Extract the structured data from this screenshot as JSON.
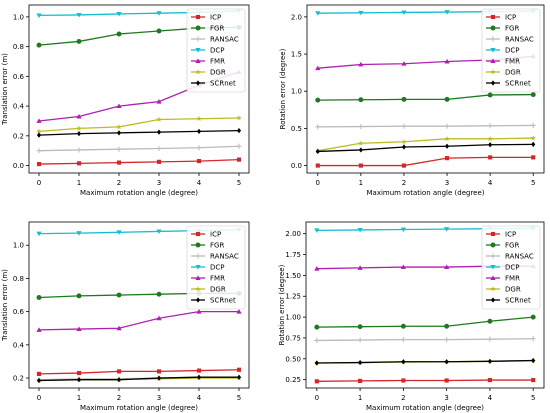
{
  "chart_data": [
    {
      "type": "line",
      "xlabel": "Maximum rotation angle (degree)",
      "ylabel": "Translation error (m)",
      "x": [
        0,
        1,
        2,
        3,
        4,
        5
      ],
      "xlim": [
        -0.25,
        5.25
      ],
      "ylim": [
        -0.05,
        1.08
      ],
      "yticks": [
        0.0,
        0.2,
        0.4,
        0.6,
        0.8,
        1.0
      ],
      "tick_format": 1,
      "legend": "top-right",
      "series": [
        {
          "name": "ICP",
          "color": "#d62728",
          "marker": "square",
          "values": [
            0.01,
            0.015,
            0.02,
            0.025,
            0.03,
            0.04
          ]
        },
        {
          "name": "FGR",
          "color": "#1f7a1f",
          "marker": "circle",
          "values": [
            0.81,
            0.835,
            0.885,
            0.905,
            0.925,
            0.93
          ]
        },
        {
          "name": "RANSAC",
          "color": "#bbbbbb",
          "marker": "plus",
          "values": [
            0.1,
            0.105,
            0.11,
            0.115,
            0.12,
            0.13
          ]
        },
        {
          "name": "DCP",
          "color": "#17becf",
          "marker": "triangle-down",
          "values": [
            1.01,
            1.013,
            1.02,
            1.025,
            1.03,
            1.04
          ]
        },
        {
          "name": "FMR",
          "color": "#b01fb0",
          "marker": "triangle-up",
          "values": [
            0.3,
            0.33,
            0.4,
            0.43,
            0.54,
            0.63
          ]
        },
        {
          "name": "DGR",
          "color": "#bcbd22",
          "marker": "star",
          "values": [
            0.23,
            0.25,
            0.26,
            0.31,
            0.315,
            0.32
          ]
        },
        {
          "name": "SCRnet",
          "color": "#000000",
          "marker": "diamond",
          "values": [
            0.205,
            0.215,
            0.22,
            0.225,
            0.23,
            0.235
          ]
        }
      ]
    },
    {
      "type": "line",
      "xlabel": "Maximum rotation angle (degree)",
      "ylabel": "Rotation error (degree)",
      "x": [
        0,
        1,
        2,
        3,
        4,
        5
      ],
      "xlim": [
        -0.25,
        5.25
      ],
      "ylim": [
        -0.1,
        2.16
      ],
      "yticks": [
        0.0,
        0.5,
        1.0,
        1.5,
        2.0
      ],
      "tick_format": 1,
      "legend": "top-right",
      "series": [
        {
          "name": "ICP",
          "color": "#d62728",
          "marker": "square",
          "values": [
            0.0,
            0.0,
            0.0,
            0.1,
            0.11,
            0.11
          ]
        },
        {
          "name": "FGR",
          "color": "#1f7a1f",
          "marker": "circle",
          "values": [
            0.88,
            0.885,
            0.89,
            0.89,
            0.95,
            0.955
          ]
        },
        {
          "name": "RANSAC",
          "color": "#bbbbbb",
          "marker": "plus",
          "values": [
            0.52,
            0.525,
            0.53,
            0.53,
            0.535,
            0.54
          ]
        },
        {
          "name": "DCP",
          "color": "#17becf",
          "marker": "triangle-down",
          "values": [
            2.05,
            2.055,
            2.06,
            2.065,
            2.07,
            2.075
          ]
        },
        {
          "name": "FMR",
          "color": "#b01fb0",
          "marker": "triangle-up",
          "values": [
            1.31,
            1.36,
            1.37,
            1.4,
            1.42,
            1.47
          ]
        },
        {
          "name": "DGR",
          "color": "#bcbd22",
          "marker": "star",
          "values": [
            0.2,
            0.3,
            0.32,
            0.36,
            0.36,
            0.37
          ]
        },
        {
          "name": "SCRnet",
          "color": "#000000",
          "marker": "diamond",
          "values": [
            0.19,
            0.21,
            0.25,
            0.26,
            0.28,
            0.285
          ]
        }
      ]
    },
    {
      "type": "line",
      "xlabel": "Maximum rotation angle (degree)",
      "ylabel": "Translation error (m)",
      "x": [
        0,
        1,
        2,
        3,
        4,
        5
      ],
      "xlim": [
        -0.25,
        5.25
      ],
      "ylim": [
        0.14,
        1.14
      ],
      "yticks": [
        0.2,
        0.4,
        0.6,
        0.8,
        1.0
      ],
      "tick_format": 1,
      "legend": "top-right",
      "series": [
        {
          "name": "ICP",
          "color": "#d62728",
          "marker": "square",
          "values": [
            0.225,
            0.23,
            0.24,
            0.24,
            0.245,
            0.25
          ]
        },
        {
          "name": "FGR",
          "color": "#1f7a1f",
          "marker": "circle",
          "values": [
            0.685,
            0.695,
            0.7,
            0.705,
            0.71,
            0.71
          ]
        },
        {
          "name": "RANSAC",
          "color": "#bbbbbb",
          "marker": "plus",
          "values": [
            0.19,
            0.195,
            0.195,
            0.2,
            0.205,
            0.205
          ]
        },
        {
          "name": "DCP",
          "color": "#17becf",
          "marker": "triangle-down",
          "values": [
            1.07,
            1.073,
            1.078,
            1.083,
            1.088,
            1.093
          ]
        },
        {
          "name": "FMR",
          "color": "#b01fb0",
          "marker": "triangle-up",
          "values": [
            0.49,
            0.495,
            0.5,
            0.56,
            0.6,
            0.6
          ]
        },
        {
          "name": "DGR",
          "color": "#bcbd22",
          "marker": "star",
          "values": [
            0.185,
            0.19,
            0.19,
            0.195,
            0.2,
            0.2
          ]
        },
        {
          "name": "SCRnet",
          "color": "#000000",
          "marker": "diamond",
          "values": [
            0.185,
            0.19,
            0.19,
            0.2,
            0.205,
            0.205
          ]
        }
      ]
    },
    {
      "type": "line",
      "xlabel": "Maximum rotation angle (degree)",
      "ylabel": "Rotation error (degree)",
      "x": [
        0,
        1,
        2,
        3,
        4,
        5
      ],
      "xlim": [
        -0.25,
        5.25
      ],
      "ylim": [
        0.15,
        2.14
      ],
      "yticks": [
        0.25,
        0.5,
        0.75,
        1.0,
        1.25,
        1.5,
        1.75,
        2.0
      ],
      "tick_format": 2,
      "legend": "top-right",
      "series": [
        {
          "name": "ICP",
          "color": "#d62728",
          "marker": "square",
          "values": [
            0.23,
            0.235,
            0.24,
            0.24,
            0.245,
            0.245
          ]
        },
        {
          "name": "FGR",
          "color": "#1f7a1f",
          "marker": "circle",
          "values": [
            0.88,
            0.885,
            0.89,
            0.89,
            0.95,
            1.0
          ]
        },
        {
          "name": "RANSAC",
          "color": "#bbbbbb",
          "marker": "plus",
          "values": [
            0.72,
            0.725,
            0.73,
            0.73,
            0.735,
            0.74
          ]
        },
        {
          "name": "DCP",
          "color": "#17becf",
          "marker": "triangle-down",
          "values": [
            2.04,
            2.045,
            2.05,
            2.055,
            2.06,
            2.065
          ]
        },
        {
          "name": "FMR",
          "color": "#b01fb0",
          "marker": "triangle-up",
          "values": [
            1.58,
            1.59,
            1.6,
            1.6,
            1.61,
            1.61
          ]
        },
        {
          "name": "DGR",
          "color": "#bcbd22",
          "marker": "star",
          "values": [
            0.45,
            0.455,
            0.46,
            0.465,
            0.47,
            0.475
          ]
        },
        {
          "name": "SCRnet",
          "color": "#000000",
          "marker": "diamond",
          "values": [
            0.45,
            0.455,
            0.465,
            0.465,
            0.47,
            0.48
          ]
        }
      ]
    }
  ]
}
